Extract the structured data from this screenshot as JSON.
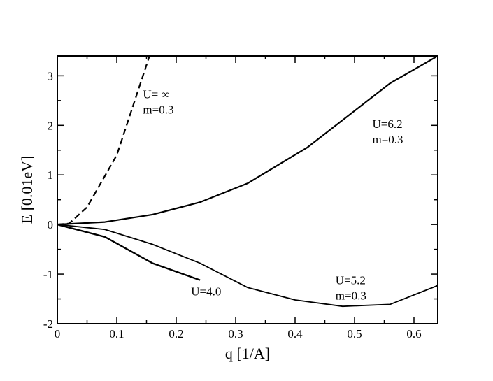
{
  "chart_data": {
    "type": "line",
    "xlabel": "q [1/A]",
    "ylabel": "E [0.01eV]",
    "xlim": [
      0,
      0.64
    ],
    "ylim": [
      -2,
      3.4
    ],
    "xticks": [
      0,
      0.1,
      0.2,
      0.3,
      0.4,
      0.5,
      0.6
    ],
    "xtick_labels": [
      "0",
      "0.1",
      "0.2",
      "0.3",
      "0.4",
      "0.5",
      "0.6"
    ],
    "yticks": [
      -2,
      -1,
      0,
      1,
      2,
      3
    ],
    "ytick_labels": [
      "-2",
      "-1",
      "0",
      "1",
      "2",
      "3"
    ],
    "grid": false,
    "series": [
      {
        "x": [
          0,
          0.02,
          0.05,
          0.1,
          0.155
        ],
        "y": [
          0,
          0.02,
          0.35,
          1.4,
          3.4
        ],
        "color": "#000000",
        "dash": "dashed",
        "width": 2.2
      },
      {
        "x": [
          0,
          0.08,
          0.16,
          0.24,
          0.32,
          0.42,
          0.56,
          0.64
        ],
        "y": [
          0,
          0.05,
          0.2,
          0.45,
          0.83,
          1.55,
          2.85,
          3.4
        ],
        "color": "#000000",
        "dash": "solid",
        "width": 2.2
      },
      {
        "x": [
          0,
          0.08,
          0.16,
          0.24,
          0.32,
          0.4,
          0.48,
          0.56,
          0.64
        ],
        "y": [
          0,
          -0.1,
          -0.4,
          -0.78,
          -1.27,
          -1.52,
          -1.65,
          -1.61,
          -1.23
        ],
        "color": "#000000",
        "dash": "solid",
        "width": 1.8
      },
      {
        "x": [
          0,
          0.08,
          0.16,
          0.24
        ],
        "y": [
          0,
          -0.25,
          -0.78,
          -1.12
        ],
        "color": "#000000",
        "dash": "solid",
        "width": 2.4
      }
    ],
    "annotations": [
      {
        "lines": [
          "U= ∞",
          "m=0.3"
        ],
        "x": 0.144,
        "y": 2.55
      },
      {
        "lines": [
          "U=6.2",
          "m=0.3"
        ],
        "x": 0.53,
        "y": 1.95
      },
      {
        "lines": [
          "U=5.2",
          "m=0.3"
        ],
        "x": 0.468,
        "y": -1.2
      },
      {
        "lines": [
          "U=4.0"
        ],
        "x": 0.225,
        "y": -1.43
      }
    ]
  }
}
